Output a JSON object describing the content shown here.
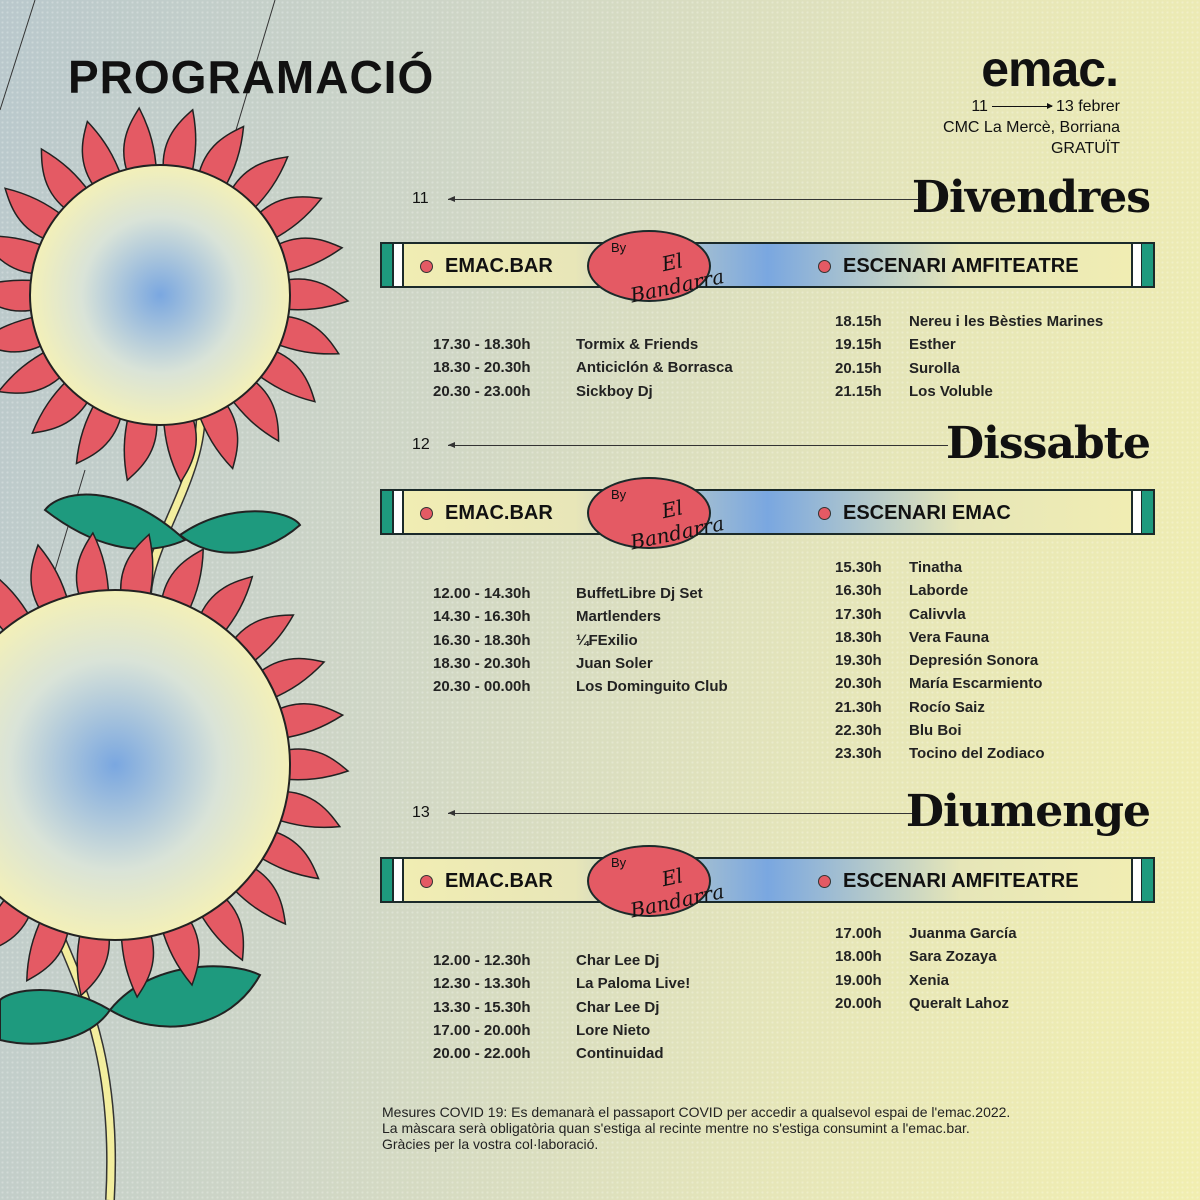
{
  "title": "PROGRAMACIÓ",
  "logo": "emac.",
  "dates": {
    "start": "11",
    "end": "13 febrer"
  },
  "venue": "CMC La Mercè, Borriana",
  "price": "GRATUÏT",
  "badge": {
    "by": "By",
    "name": "El Bandarra"
  },
  "colors": {
    "accent_red": "#e45a64",
    "stripe_green": "#1e9a7e",
    "blue": "#7aa7e0"
  },
  "days": [
    {
      "num": "11",
      "name": "Divendres",
      "left_stage": "EMAC.BAR",
      "right_stage": "ESCENARI  AMFITEATRE",
      "left": [
        [
          "17.30 - 18.30h",
          "Tormix & Friends"
        ],
        [
          "18.30 - 20.30h",
          "Anticiclón & Borrasca"
        ],
        [
          "20.30 - 23.00h",
          "Sickboy Dj"
        ]
      ],
      "right": [
        [
          "18.15h",
          "Nereu i les Bèsties Marines"
        ],
        [
          "19.15h",
          "Esther"
        ],
        [
          "20.15h",
          "Surolla"
        ],
        [
          "21.15h",
          "Los Voluble"
        ]
      ]
    },
    {
      "num": "12",
      "name": "Dissabte",
      "left_stage": "EMAC.BAR",
      "right_stage": "ESCENARI EMAC",
      "left": [
        [
          "12.00 - 14.30h",
          "BuffetLibre Dj Set"
        ],
        [
          "14.30 - 16.30h",
          "Martlenders"
        ],
        [
          "16.30 - 18.30h",
          "¼FExilio"
        ],
        [
          "18.30 - 20.30h",
          "Juan Soler"
        ],
        [
          "20.30 - 00.00h",
          "Los Dominguito Club"
        ]
      ],
      "right": [
        [
          "15.30h",
          "Tinatha"
        ],
        [
          "16.30h",
          "Laborde"
        ],
        [
          "17.30h",
          "Calivvla"
        ],
        [
          "18.30h",
          "Vera Fauna"
        ],
        [
          "19.30h",
          "Depresión Sonora"
        ],
        [
          "20.30h",
          "María Escarmiento"
        ],
        [
          "21.30h",
          "Rocío Saiz"
        ],
        [
          "22.30h",
          "Blu Boi"
        ],
        [
          "23.30h",
          "Tocino del Zodiaco"
        ]
      ]
    },
    {
      "num": "13",
      "name": "Diumenge",
      "left_stage": "EMAC.BAR",
      "right_stage": "ESCENARI AMFITEATRE",
      "left": [
        [
          "12.00 - 12.30h",
          "Char Lee Dj"
        ],
        [
          "12.30 - 13.30h",
          "La Paloma Live!"
        ],
        [
          "13.30 - 15.30h",
          "Char Lee Dj"
        ],
        [
          "17.00 - 20.00h",
          "Lore Nieto"
        ],
        [
          "20.00 - 22.00h",
          "Continuidad"
        ]
      ],
      "right": [
        [
          "17.00h",
          "Juanma García"
        ],
        [
          "18.00h",
          "Sara Zozaya"
        ],
        [
          "19.00h",
          "Xenia"
        ],
        [
          "20.00h",
          "Queralt Lahoz"
        ]
      ]
    }
  ],
  "covid": [
    "Mesures COVID 19: Es demanarà el passaport COVID per accedir a qualsevol espai de l'emac.2022.",
    "La màscara serà obligatòria quan s'estiga al recinte mentre no s'estiga consumint a l'emac.bar.",
    "Gràcies per la vostra col·laboració."
  ]
}
